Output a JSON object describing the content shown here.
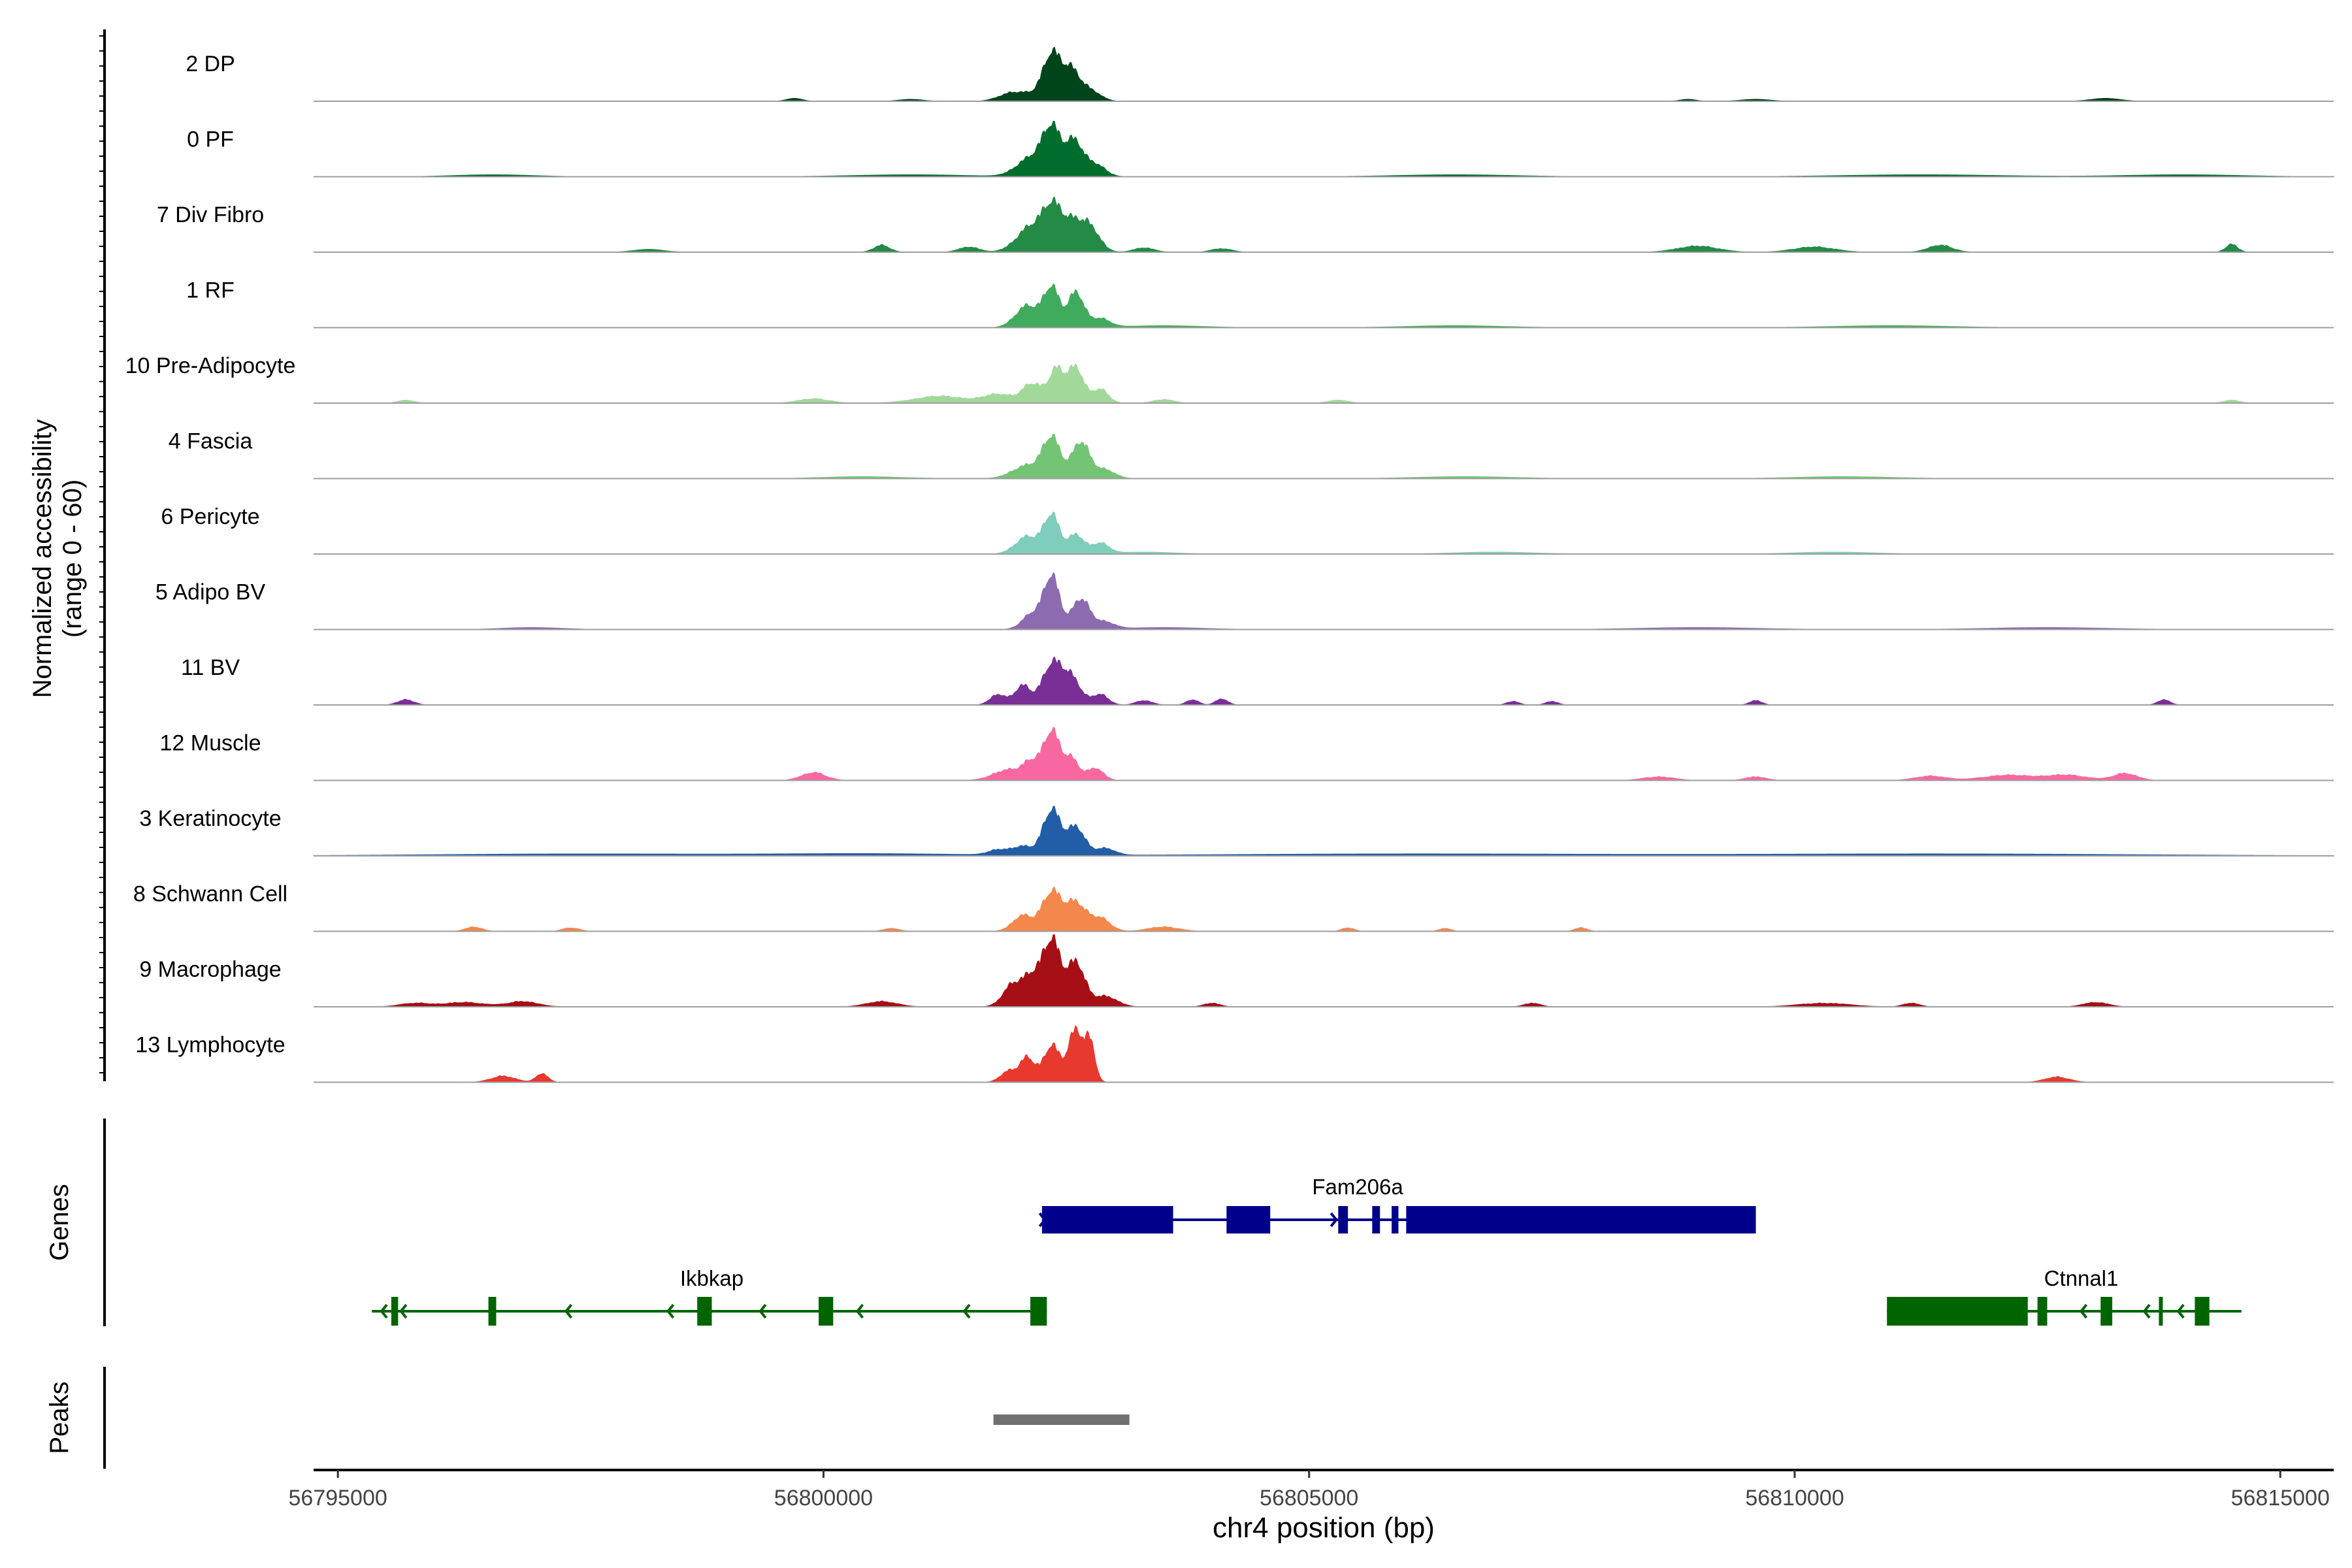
{
  "chart_data": {
    "type": "area",
    "title": "",
    "ylabel_line1": "Normalized accessibility",
    "ylabel_line2": "(range 0 - 60)",
    "xlabel": "chr4 position (bp)",
    "xlim": [
      56794750,
      56815550
    ],
    "ylim": [
      0,
      60
    ],
    "x_ticks": [
      56795000,
      56800000,
      56805000,
      56810000,
      56815000
    ],
    "x_tick_labels": [
      "56795000",
      "56800000",
      "56805000",
      "56810000",
      "56815000"
    ],
    "tracks": [
      {
        "name": "2 DP",
        "color": "#00441b",
        "peaks": [
          [
            56802100,
            150,
            8
          ],
          [
            56802350,
            90,
            52
          ],
          [
            56802550,
            90,
            34
          ],
          [
            56802750,
            100,
            12
          ],
          [
            56801900,
            120,
            6
          ]
        ],
        "minor": [
          [
            56799700,
            80,
            3
          ],
          [
            56800900,
            120,
            2
          ],
          [
            56808900,
            80,
            2
          ],
          [
            56809600,
            150,
            2
          ],
          [
            56813200,
            150,
            3
          ]
        ]
      },
      {
        "name": "0 PF",
        "color": "#006d2c",
        "peaks": [
          [
            56802150,
            150,
            22
          ],
          [
            56802350,
            90,
            50
          ],
          [
            56802580,
            90,
            40
          ],
          [
            56802800,
            100,
            14
          ]
        ],
        "minor": [
          [
            56796600,
            400,
            2
          ],
          [
            56800900,
            600,
            2
          ],
          [
            56806500,
            600,
            2
          ],
          [
            56811300,
            800,
            2
          ],
          [
            56814000,
            600,
            2
          ]
        ]
      },
      {
        "name": "7 Div Fibro",
        "color": "#238b45",
        "peaks": [
          [
            56802150,
            150,
            30
          ],
          [
            56802350,
            90,
            38
          ],
          [
            56802550,
            120,
            33
          ],
          [
            56802750,
            100,
            24
          ]
        ],
        "minor": [
          [
            56800600,
            80,
            8
          ],
          [
            56801500,
            100,
            6
          ],
          [
            56803300,
            100,
            5
          ],
          [
            56804100,
            100,
            4
          ],
          [
            56809000,
            200,
            7
          ],
          [
            56810200,
            200,
            6
          ],
          [
            56811500,
            120,
            8
          ],
          [
            56814500,
            60,
            9
          ],
          [
            56798200,
            150,
            3
          ]
        ]
      },
      {
        "name": "1 RF",
        "color": "#41ab5d",
        "peaks": [
          [
            56802100,
            120,
            25
          ],
          [
            56802350,
            80,
            45
          ],
          [
            56802600,
            80,
            40
          ],
          [
            56802850,
            100,
            10
          ]
        ],
        "minor": [
          [
            56803500,
            400,
            2
          ],
          [
            56806500,
            500,
            2
          ],
          [
            56811000,
            600,
            2
          ]
        ]
      },
      {
        "name": "10 Pre-Adipocyte",
        "color": "#a1d99b",
        "peaks": [
          [
            56801200,
            250,
            8
          ],
          [
            56801800,
            150,
            10
          ],
          [
            56802150,
            100,
            22
          ],
          [
            56802400,
            80,
            38
          ],
          [
            56802600,
            80,
            40
          ],
          [
            56802850,
            80,
            16
          ]
        ],
        "minor": [
          [
            56799900,
            150,
            5
          ],
          [
            56803500,
            100,
            4
          ],
          [
            56805300,
            100,
            3
          ],
          [
            56814500,
            80,
            3
          ],
          [
            56795700,
            80,
            3
          ]
        ]
      },
      {
        "name": "4 Fascia",
        "color": "#74c476",
        "peaks": [
          [
            56802100,
            150,
            15
          ],
          [
            56802350,
            90,
            45
          ],
          [
            56802650,
            90,
            42
          ],
          [
            56802900,
            100,
            10
          ]
        ],
        "minor": [
          [
            56800400,
            400,
            2
          ],
          [
            56806600,
            500,
            2
          ],
          [
            56810500,
            500,
            2
          ]
        ]
      },
      {
        "name": "6 Pericyte",
        "color": "#7fcdbb",
        "peaks": [
          [
            56802100,
            120,
            20
          ],
          [
            56802350,
            80,
            44
          ],
          [
            56802600,
            80,
            22
          ],
          [
            56802850,
            90,
            12
          ]
        ],
        "minor": [
          [
            56803300,
            300,
            2
          ],
          [
            56806900,
            400,
            2
          ],
          [
            56810400,
            400,
            2
          ]
        ]
      },
      {
        "name": "5 Adipo BV",
        "color": "#8c6bb1",
        "peaks": [
          [
            56802150,
            100,
            18
          ],
          [
            56802350,
            80,
            60
          ],
          [
            56802650,
            90,
            35
          ],
          [
            56802900,
            100,
            8
          ]
        ],
        "minor": [
          [
            56797000,
            300,
            2
          ],
          [
            56803500,
            400,
            2
          ],
          [
            56809000,
            600,
            2
          ],
          [
            56812600,
            600,
            2
          ]
        ]
      },
      {
        "name": "11 BV",
        "color": "#7a2f96",
        "peaks": [
          [
            56801800,
            80,
            12
          ],
          [
            56802050,
            80,
            22
          ],
          [
            56802350,
            100,
            45
          ],
          [
            56802550,
            100,
            30
          ],
          [
            56802850,
            80,
            12
          ]
        ],
        "minor": [
          [
            56795700,
            80,
            6
          ],
          [
            56803300,
            80,
            5
          ],
          [
            56803800,
            60,
            6
          ],
          [
            56804100,
            60,
            7
          ],
          [
            56807100,
            60,
            4
          ],
          [
            56807500,
            60,
            4
          ],
          [
            56809600,
            60,
            5
          ],
          [
            56813800,
            60,
            6
          ]
        ]
      },
      {
        "name": "12 Muscle",
        "color": "#f768a1",
        "peaks": [
          [
            56801900,
            150,
            12
          ],
          [
            56802150,
            90,
            20
          ],
          [
            56802350,
            80,
            55
          ],
          [
            56802550,
            80,
            25
          ],
          [
            56802800,
            80,
            14
          ]
        ],
        "minor": [
          [
            56799900,
            120,
            9
          ],
          [
            56808600,
            150,
            4
          ],
          [
            56809600,
            100,
            4
          ],
          [
            56811400,
            150,
            5
          ],
          [
            56812200,
            250,
            6
          ],
          [
            56812800,
            200,
            6
          ],
          [
            56813400,
            120,
            8
          ]
        ]
      },
      {
        "name": "3 Keratinocyte",
        "color": "#225ea8",
        "peaks": [
          [
            56801800,
            100,
            6
          ],
          [
            56802050,
            100,
            10
          ],
          [
            56802350,
            90,
            52
          ],
          [
            56802600,
            90,
            32
          ],
          [
            56802900,
            100,
            8
          ]
        ],
        "minor": [
          [
            56797500,
            1500,
            2
          ],
          [
            56800500,
            1000,
            2
          ],
          [
            56806000,
            2000,
            2
          ],
          [
            56811500,
            2000,
            2
          ]
        ]
      },
      {
        "name": "8 Schwann Cell",
        "color": "#f4874b",
        "peaks": [
          [
            56802050,
            100,
            18
          ],
          [
            56802350,
            100,
            45
          ],
          [
            56802600,
            100,
            32
          ],
          [
            56802850,
            100,
            15
          ]
        ],
        "minor": [
          [
            56796400,
            80,
            5
          ],
          [
            56797400,
            80,
            4
          ],
          [
            56800700,
            80,
            3
          ],
          [
            56803500,
            150,
            5
          ],
          [
            56805400,
            60,
            4
          ],
          [
            56806400,
            60,
            3
          ],
          [
            56807800,
            60,
            4
          ]
        ]
      },
      {
        "name": "9 Macrophage",
        "color": "#a50f15",
        "peaks": [
          [
            56801950,
            100,
            25
          ],
          [
            56802150,
            90,
            32
          ],
          [
            56802350,
            90,
            75
          ],
          [
            56802600,
            90,
            50
          ],
          [
            56802900,
            120,
            12
          ]
        ],
        "minor": [
          [
            56795800,
            150,
            4
          ],
          [
            56796300,
            200,
            5
          ],
          [
            56796900,
            150,
            6
          ],
          [
            56800600,
            150,
            6
          ],
          [
            56804000,
            80,
            4
          ],
          [
            56807300,
            80,
            4
          ],
          [
            56810300,
            250,
            4
          ],
          [
            56811200,
            80,
            4
          ],
          [
            56813100,
            120,
            5
          ]
        ]
      },
      {
        "name": "13 Lymphocyte",
        "color": "#e8392f",
        "peaks": [
          [
            56801900,
            80,
            12
          ],
          [
            56802100,
            80,
            28
          ],
          [
            56802350,
            80,
            42
          ],
          [
            56802600,
            80,
            60
          ],
          [
            56802750,
            50,
            40
          ]
        ],
        "minor": [
          [
            56796700,
            120,
            7
          ],
          [
            56797100,
            60,
            10
          ],
          [
            56812700,
            120,
            6
          ]
        ]
      }
    ],
    "genes": [
      {
        "name": "Fam206a",
        "color": "#00008b",
        "start": 56802250,
        "end": 56809600,
        "strand": "+",
        "row": 0,
        "exons": [
          [
            56802250,
            56803600
          ],
          [
            56804150,
            56804600
          ],
          [
            56805300,
            56805400
          ],
          [
            56805650,
            56805730
          ],
          [
            56805850,
            56805920
          ],
          [
            56806000,
            56809600
          ]
        ],
        "arrows": [
          56802280,
          56805280
        ]
      },
      {
        "name": "Ikbkap",
        "color": "#006400",
        "start": 56795350,
        "end": 56802300,
        "strand": "-",
        "row": 1,
        "exons": [
          [
            56795550,
            56795620
          ],
          [
            56796550,
            56796630
          ],
          [
            56798700,
            56798850
          ],
          [
            56799950,
            56800100
          ],
          [
            56802130,
            56802300
          ]
        ],
        "arrows": [
          56795450,
          56795650,
          56797350,
          56798400,
          56799350,
          56800350,
          56801450
        ]
      },
      {
        "name": "Ctnnal1",
        "color": "#006400",
        "start": 56810950,
        "end": 56814600,
        "strand": "-",
        "row": 1,
        "exons": [
          [
            56810950,
            56812400
          ],
          [
            56812500,
            56812600
          ],
          [
            56813150,
            56813270
          ],
          [
            56813750,
            56813790
          ],
          [
            56814120,
            56814270
          ]
        ],
        "arrows": [
          56812950,
          56813600,
          56813950
        ]
      }
    ],
    "peaks_track": [
      {
        "start": 56801750,
        "end": 56803150,
        "color": "#707070"
      }
    ],
    "panel_labels": {
      "genes": "Genes",
      "peaks": "Peaks"
    }
  }
}
